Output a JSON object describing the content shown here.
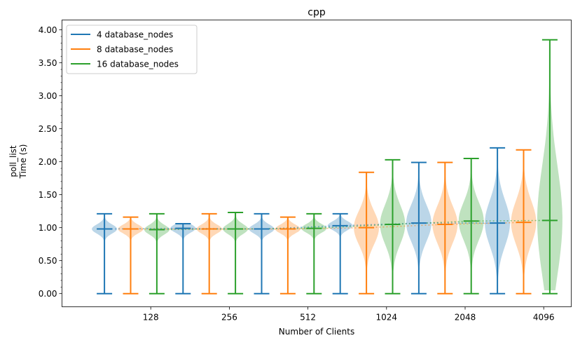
{
  "chart_data": {
    "type": "violin",
    "title": "cpp",
    "xlabel": "Number of Clients",
    "ylabel": [
      "poll_list",
      "Time (s)"
    ],
    "categories": [
      "128",
      "256",
      "512",
      "1024",
      "2048",
      "4096"
    ],
    "ylim": [
      -0.2,
      4.15
    ],
    "yticks": [
      "0.00",
      "0.50",
      "1.00",
      "1.50",
      "2.00",
      "2.50",
      "3.00",
      "3.50",
      "4.00"
    ],
    "grid": false,
    "legend_position": "top-left",
    "series": [
      {
        "name": "4 database_nodes",
        "color": "#1f77b4",
        "min": [
          0.0,
          0.0,
          0.0,
          0.0,
          0.0,
          0.0
        ],
        "max": [
          1.21,
          1.06,
          1.21,
          1.21,
          1.99,
          2.21
        ],
        "mean": [
          0.98,
          0.99,
          0.98,
          1.03,
          1.07,
          1.07
        ]
      },
      {
        "name": "8 database_nodes",
        "color": "#ff7f0e",
        "min": [
          0.0,
          0.0,
          0.0,
          0.0,
          0.0,
          0.0
        ],
        "max": [
          1.16,
          1.21,
          1.16,
          1.84,
          1.99,
          2.18
        ],
        "mean": [
          0.98,
          0.98,
          0.98,
          1.0,
          1.05,
          1.08
        ]
      },
      {
        "name": "16 database_nodes",
        "color": "#2ca02c",
        "min": [
          0.0,
          0.0,
          0.0,
          0.0,
          0.0,
          0.0
        ],
        "max": [
          1.21,
          1.23,
          1.21,
          2.03,
          2.05,
          3.85
        ],
        "mean": [
          0.97,
          0.98,
          0.99,
          1.05,
          1.1,
          1.11
        ]
      }
    ]
  }
}
